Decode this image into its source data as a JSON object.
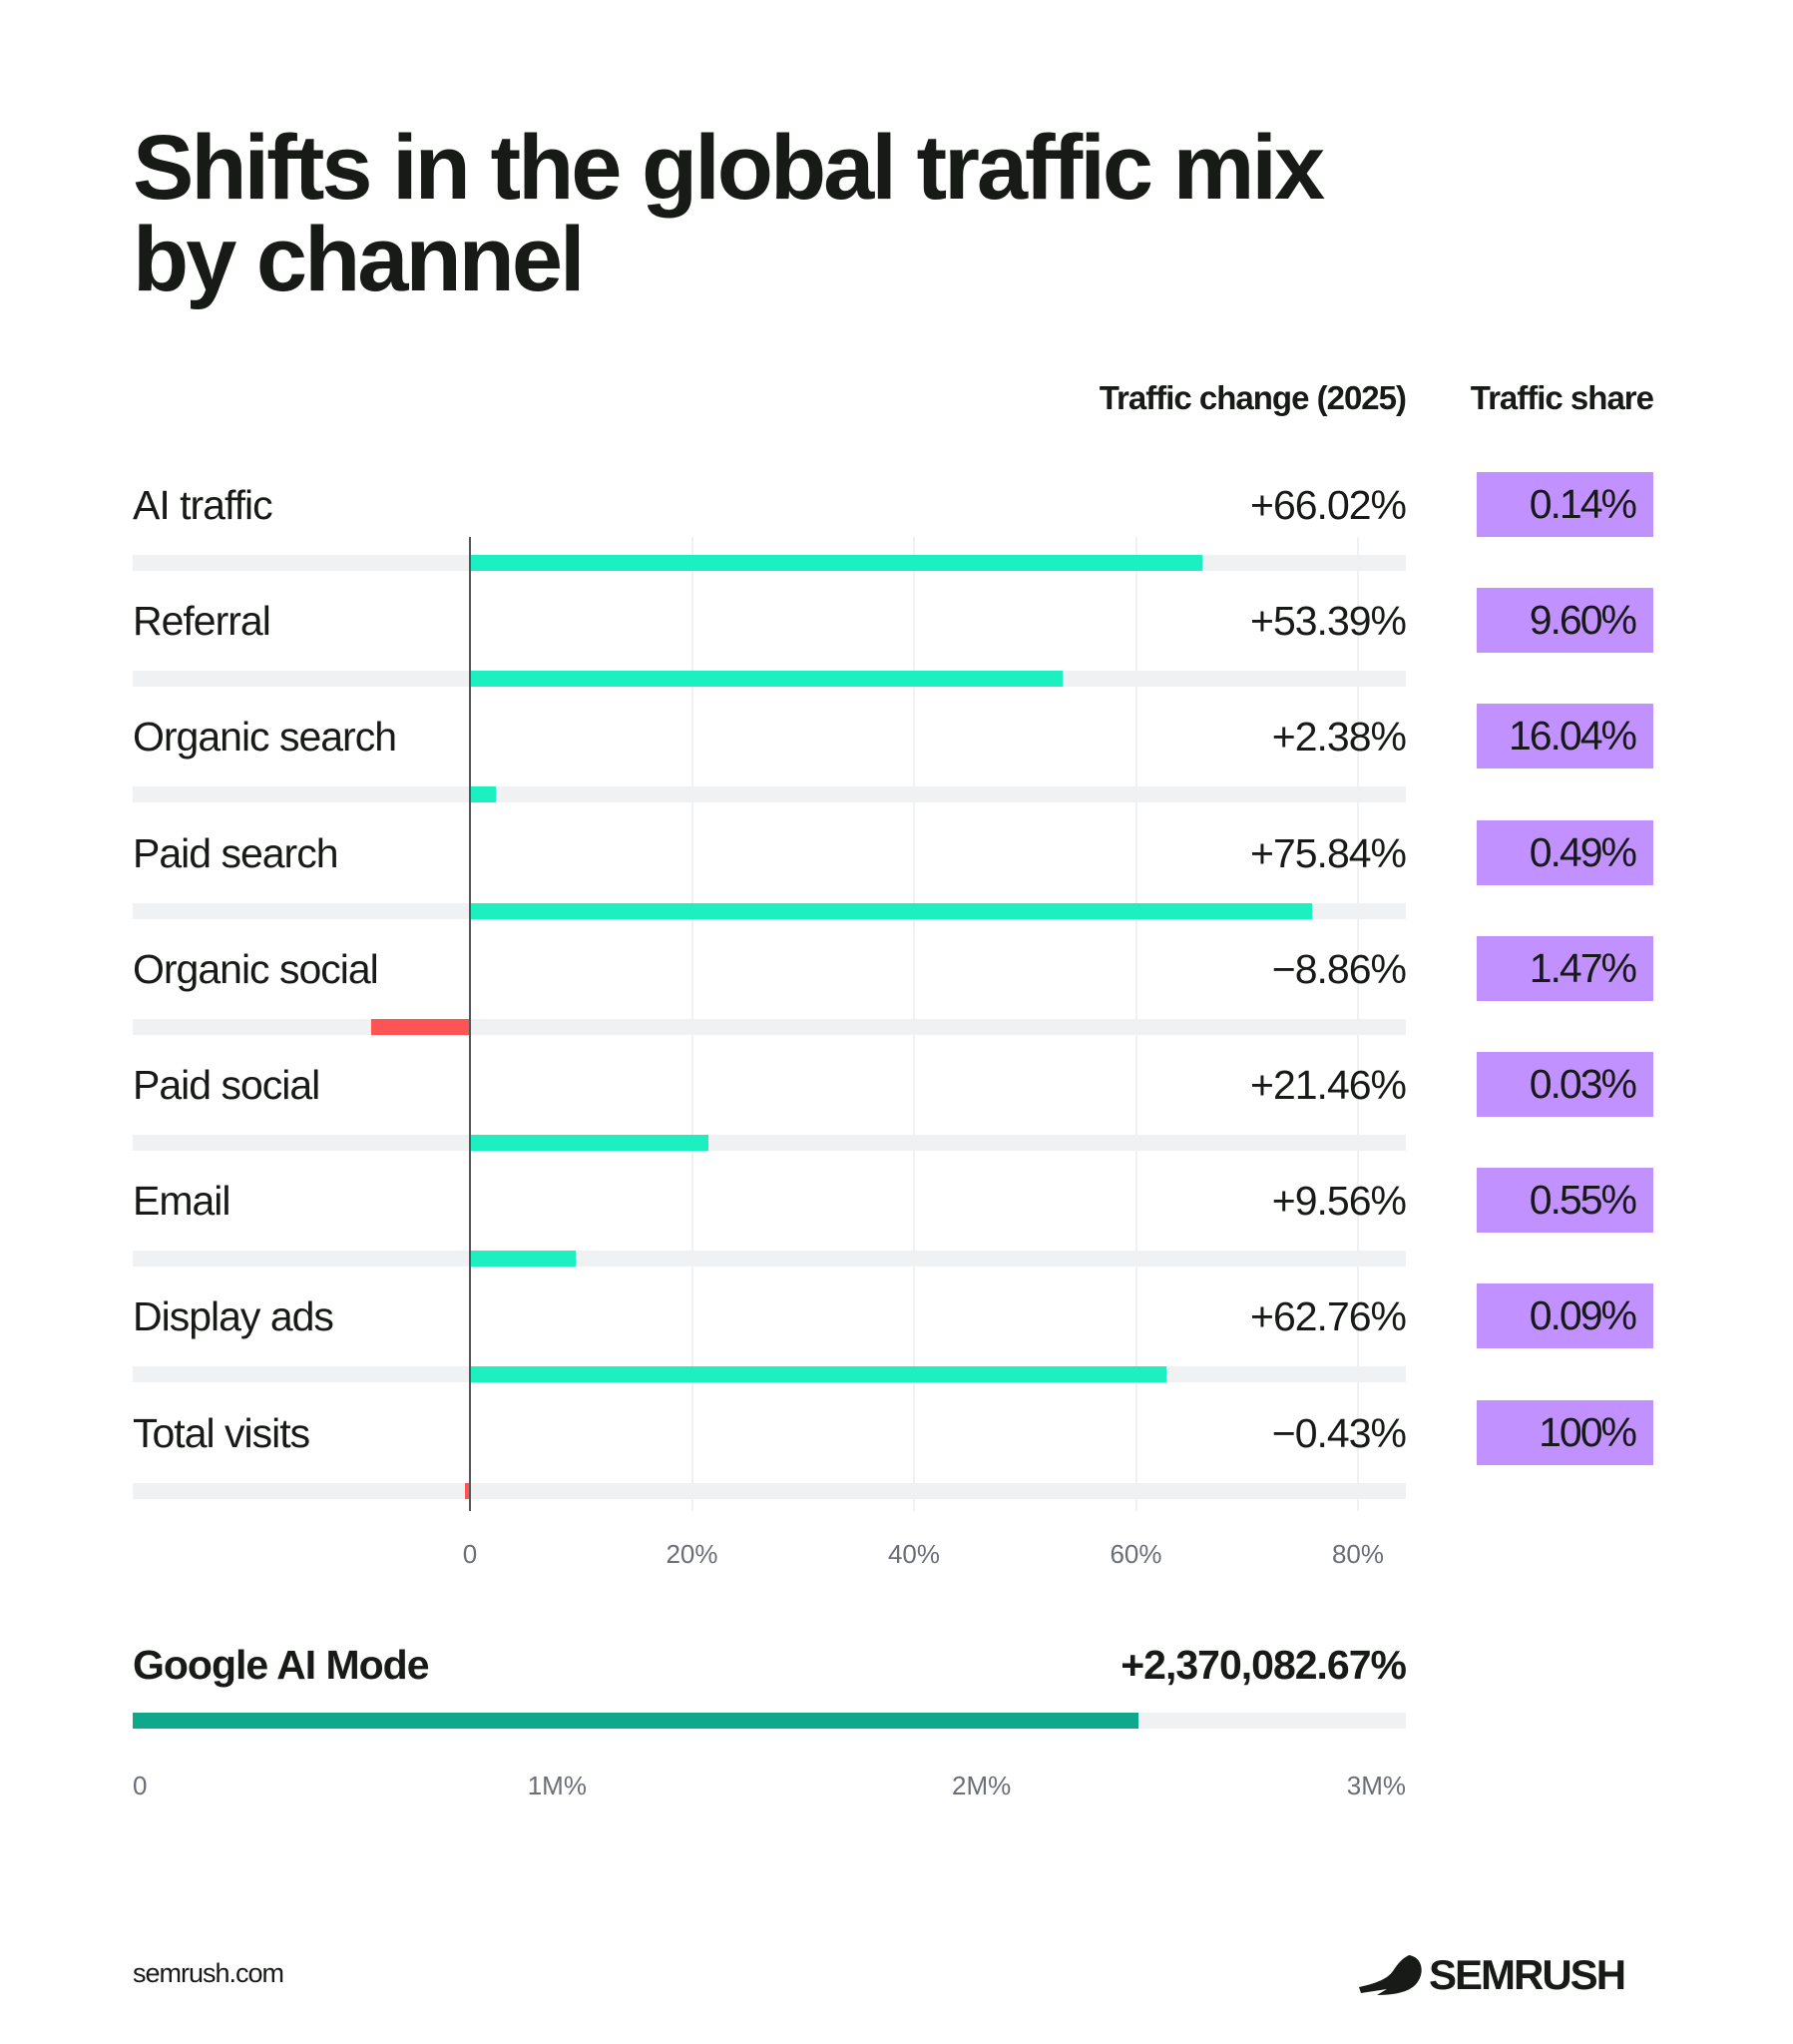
{
  "title": "Shifts in the global traffic mix by channel",
  "headers": {
    "change": "Traffic change (2025)",
    "share": "Traffic share"
  },
  "colors": {
    "positive": "#1df0c0",
    "negative": "#ff5454",
    "share_bg": "#c191ff",
    "highlight": "#10a88a",
    "track": "#f0f1f2"
  },
  "chart_data": [
    {
      "type": "bar",
      "orientation": "horizontal",
      "categories": [
        "AI traffic",
        "Referral",
        "Organic search",
        "Paid search",
        "Organic social",
        "Paid social",
        "Email",
        "Display ads",
        "Total visits"
      ],
      "values": [
        66.02,
        53.39,
        2.38,
        75.84,
        -8.86,
        21.46,
        9.56,
        62.76,
        -0.43
      ],
      "value_labels": [
        "+66.02%",
        "+53.39%",
        "+2.38%",
        "+75.84%",
        "−8.86%",
        "+21.46%",
        "+9.56%",
        "+62.76%",
        "−0.43%"
      ],
      "shares": [
        "0.14%",
        "9.60%",
        "16.04%",
        "0.49%",
        "1.47%",
        "0.03%",
        "0.55%",
        "0.09%",
        "100%"
      ],
      "xlim": [
        -30.5,
        84
      ],
      "ticks": [
        0,
        20,
        40,
        60,
        80
      ],
      "tick_labels": [
        "0",
        "20%",
        "40%",
        "60%",
        "80%"
      ],
      "grid": true
    },
    {
      "type": "bar",
      "orientation": "horizontal",
      "categories": [
        "Google AI Mode"
      ],
      "values": [
        2370082.67
      ],
      "value_labels": [
        "+2,370,082.67%"
      ],
      "xlim": [
        0,
        3000000
      ],
      "ticks": [
        0,
        1000000,
        2000000,
        3000000
      ],
      "tick_labels": [
        "0",
        "1M%",
        "2M%",
        "3M%"
      ]
    }
  ],
  "footer": {
    "source": "semrush.com",
    "logo": "SEMRUSH"
  }
}
